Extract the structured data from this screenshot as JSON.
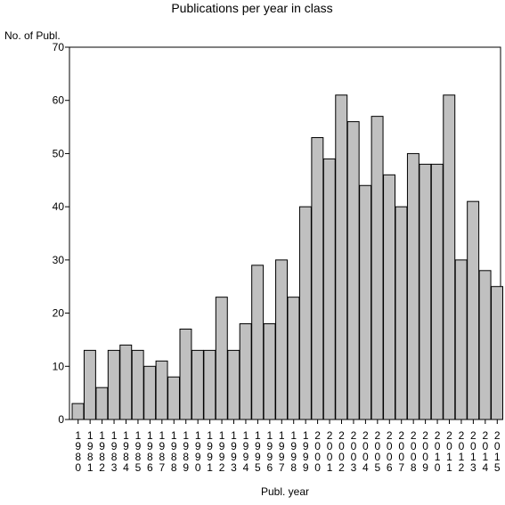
{
  "chart_data": {
    "type": "bar",
    "title": "Publications per year in class",
    "ylabel": "No. of Publ.",
    "xlabel": "Publ. year",
    "ylim": [
      0,
      70
    ],
    "yticks": [
      "0",
      "10",
      "20",
      "30",
      "40",
      "50",
      "60",
      "70"
    ],
    "bar_color": "#c0c0c0",
    "grid": false,
    "categories": [
      "1980",
      "1981",
      "1982",
      "1983",
      "1984",
      "1985",
      "1986",
      "1987",
      "1988",
      "1989",
      "1990",
      "1991",
      "1992",
      "1993",
      "1994",
      "1995",
      "1996",
      "1997",
      "1998",
      "1999",
      "2000",
      "2001",
      "2002",
      "2003",
      "2004",
      "2005",
      "2006",
      "2007",
      "2008",
      "2009",
      "2010",
      "2011",
      "2012",
      "2013",
      "2014",
      "2015"
    ],
    "values": [
      3,
      13,
      6,
      13,
      14,
      13,
      10,
      11,
      8,
      17,
      13,
      13,
      23,
      13,
      18,
      29,
      18,
      30,
      23,
      40,
      53,
      49,
      61,
      56,
      44,
      57,
      46,
      40,
      50,
      48,
      48,
      61,
      30,
      41,
      28,
      25
    ]
  }
}
